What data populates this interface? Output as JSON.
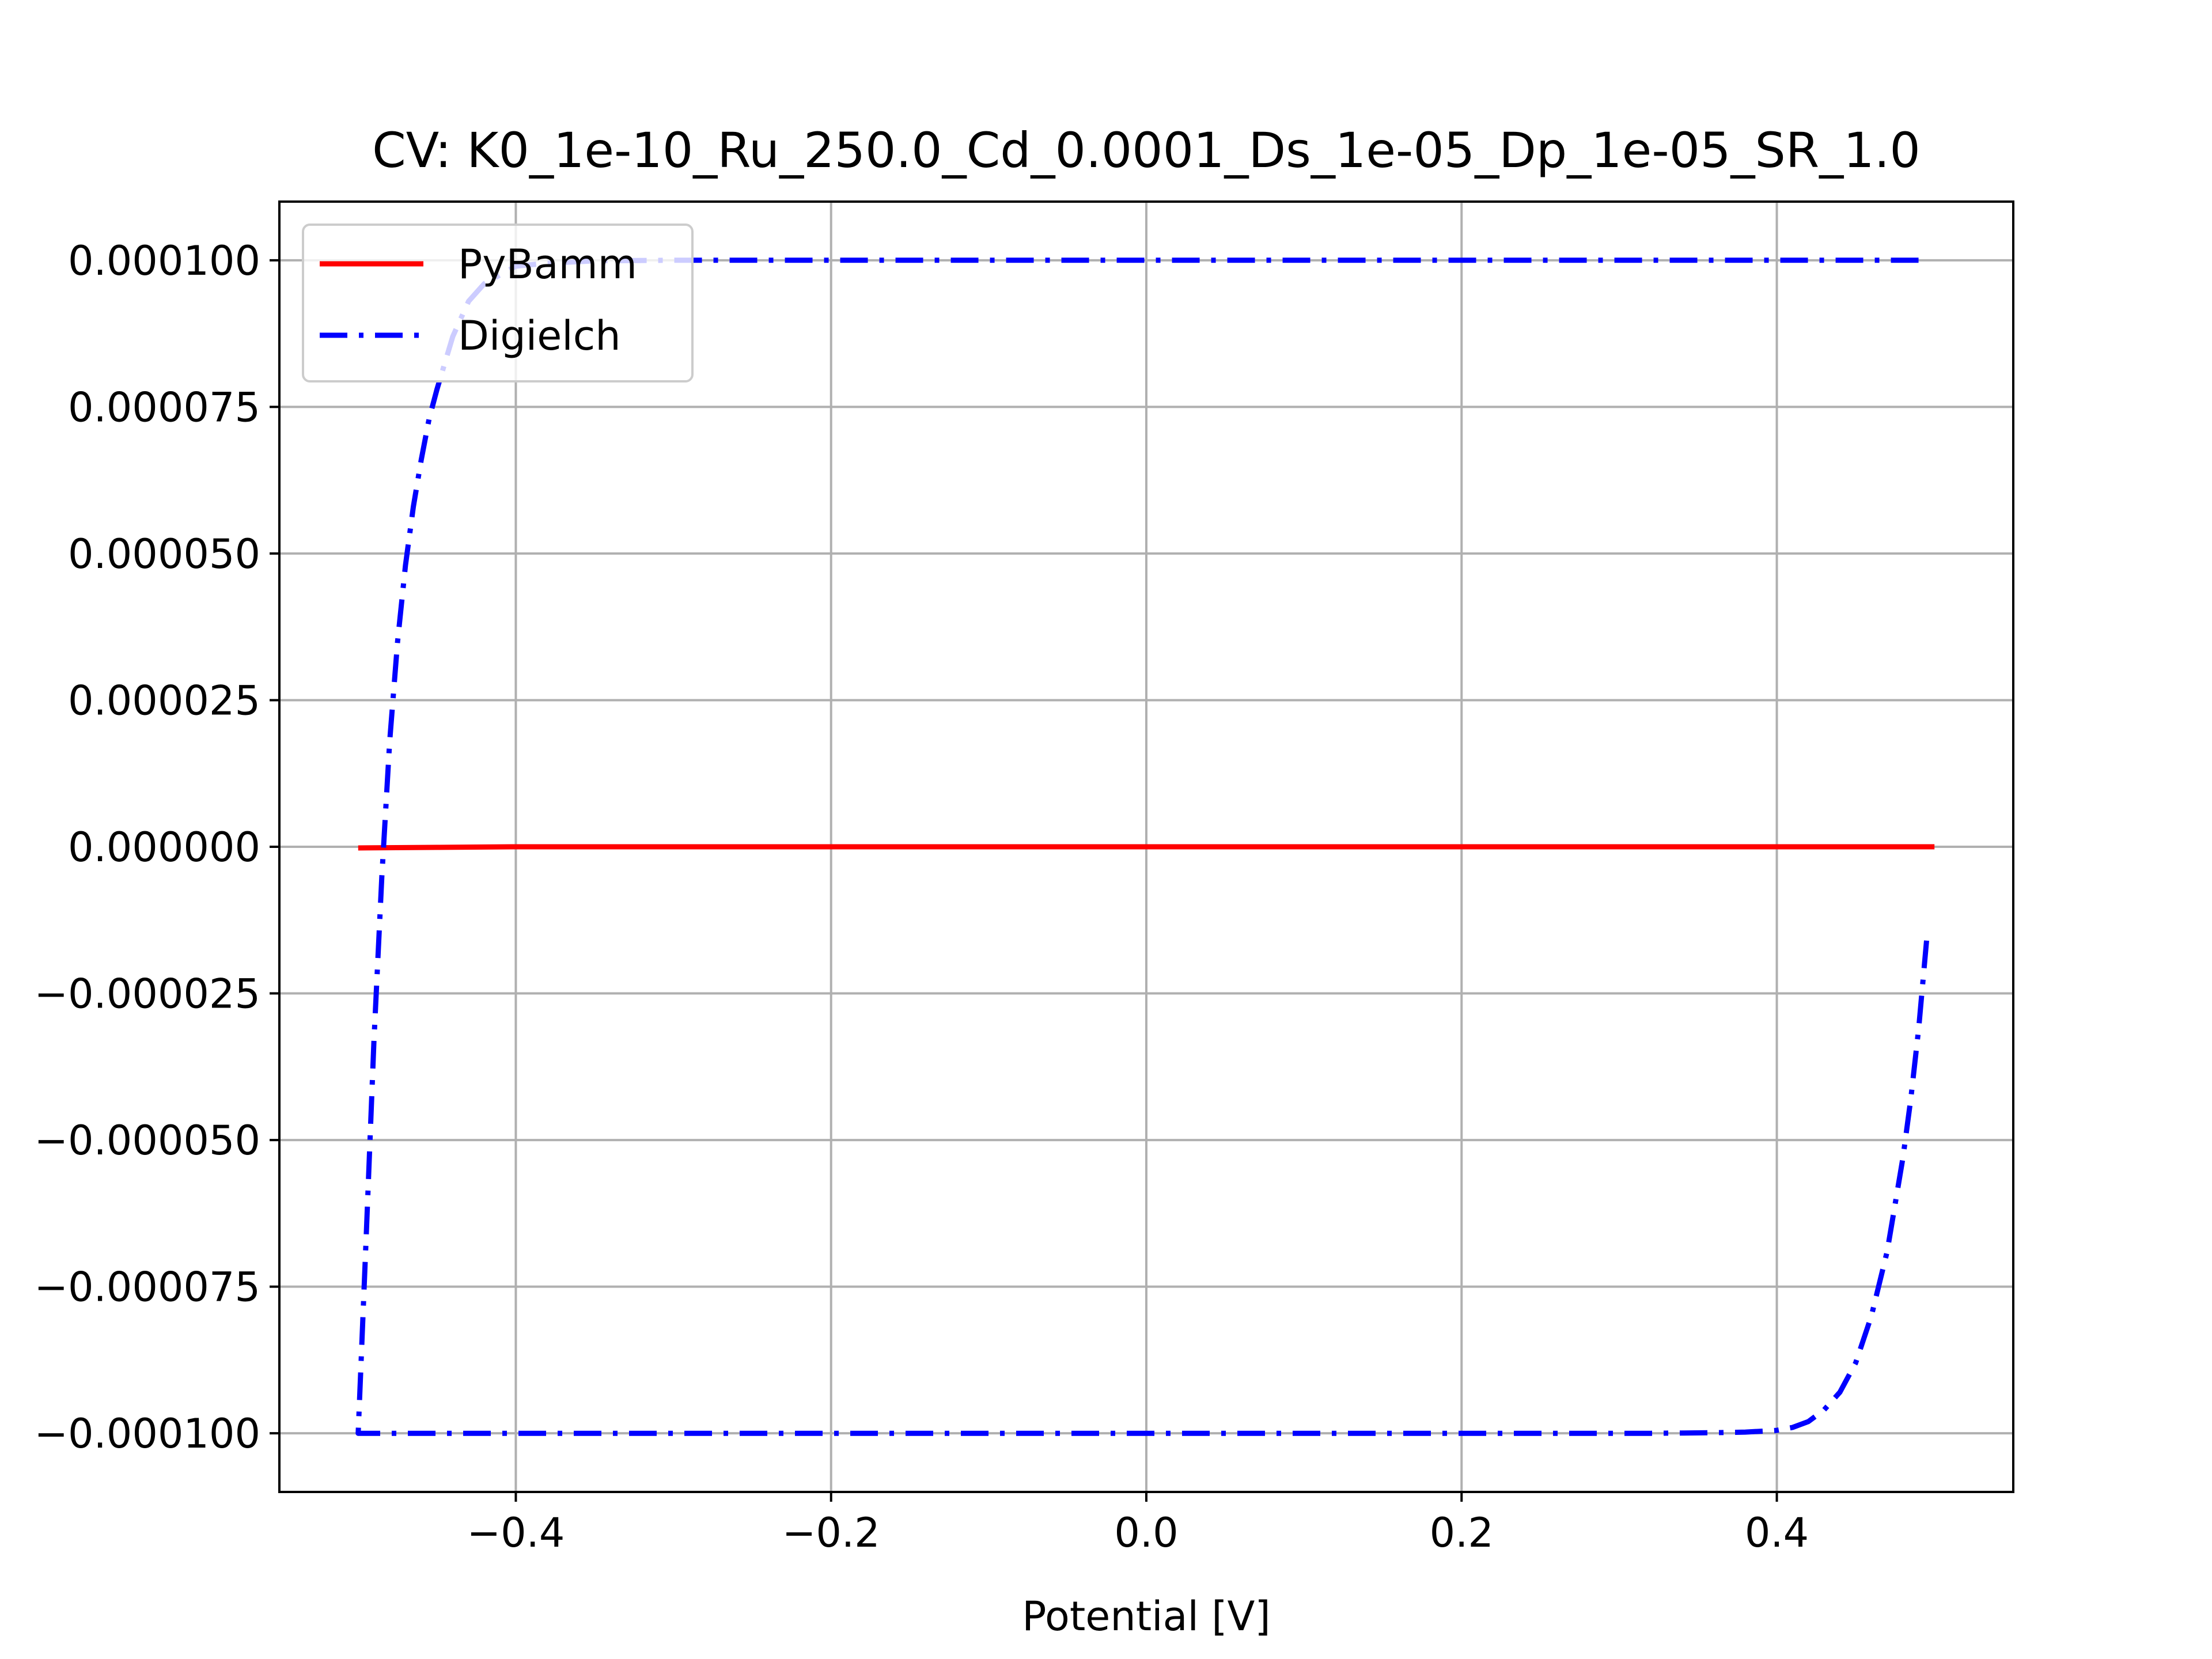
{
  "chart_data": {
    "type": "line",
    "title": "CV: K0_1e-10_Ru_250.0_Cd_0.0001_Ds_1e-05_Dp_1e-05_SR_1.0",
    "xlabel": "Potential [V]",
    "ylabel": "",
    "xlim": [
      -0.55,
      0.55
    ],
    "ylim": [
      -0.00011,
      0.00011
    ],
    "grid": true,
    "legend_position": "upper-left",
    "x_ticks": [
      -0.4,
      -0.2,
      0.0,
      0.2,
      0.4
    ],
    "x_tick_labels": [
      "−0.4",
      "−0.2",
      "0.0",
      "0.2",
      "0.4"
    ],
    "y_ticks": [
      0.0001,
      7.5e-05,
      5e-05,
      2.5e-05,
      0.0,
      -2.5e-05,
      -5e-05,
      -7.5e-05,
      -0.0001
    ],
    "y_tick_labels": [
      "0.000100",
      "0.000075",
      "0.000050",
      "0.000025",
      "0.000000",
      "−0.000025",
      "−0.000050",
      "−0.000075",
      "−0.000100"
    ],
    "series": [
      {
        "name": "PyBamm",
        "color": "#ff0000",
        "style": "solid",
        "x": [
          -0.5,
          -0.45,
          -0.4,
          -0.2,
          0.0,
          0.2,
          0.4,
          0.5
        ],
        "y": [
          -2e-07,
          -1e-07,
          0.0,
          0.0,
          0.0,
          0.0,
          0.0,
          0.0
        ]
      },
      {
        "name": "Digielch",
        "color": "#0000ff",
        "style": "dashdot",
        "x": [
          0.495,
          0.49,
          0.485,
          0.48,
          0.47,
          0.46,
          0.45,
          0.44,
          0.43,
          0.42,
          0.41,
          0.4,
          0.38,
          0.36,
          0.34,
          0.32,
          0.3,
          0.2,
          0.0,
          -0.2,
          -0.4,
          -0.45,
          -0.5,
          -0.5,
          -0.495,
          -0.49,
          -0.485,
          -0.48,
          -0.475,
          -0.47,
          -0.465,
          -0.46,
          -0.455,
          -0.45,
          -0.44,
          -0.43,
          -0.42,
          -0.4,
          -0.38,
          -0.35,
          -0.3,
          -0.2,
          0.0,
          0.2,
          0.4,
          0.495
        ],
        "y": [
          -1.6e-05,
          -3.1e-05,
          -4.3e-05,
          -5.3e-05,
          -6.9e-05,
          -8e-05,
          -8.8e-05,
          -9.3e-05,
          -9.6e-05,
          -9.8e-05,
          -9.9e-05,
          -9.95e-05,
          -9.98e-05,
          -9.99e-05,
          -9.995e-05,
          -0.0001,
          -0.0001,
          -0.0001,
          -0.0001,
          -0.0001,
          -0.0001,
          -0.0001,
          -0.0001,
          -0.0001,
          -6.7e-05,
          -3.3e-05,
          -5e-06,
          1.8e-05,
          3.5e-05,
          4.8e-05,
          5.8e-05,
          6.6e-05,
          7.3e-05,
          7.8e-05,
          8.7e-05,
          9.3e-05,
          9.6e-05,
          9.9e-05,
          9.95e-05,
          9.99e-05,
          0.0001,
          0.0001,
          0.0001,
          0.0001,
          0.0001,
          0.0001
        ]
      }
    ]
  }
}
